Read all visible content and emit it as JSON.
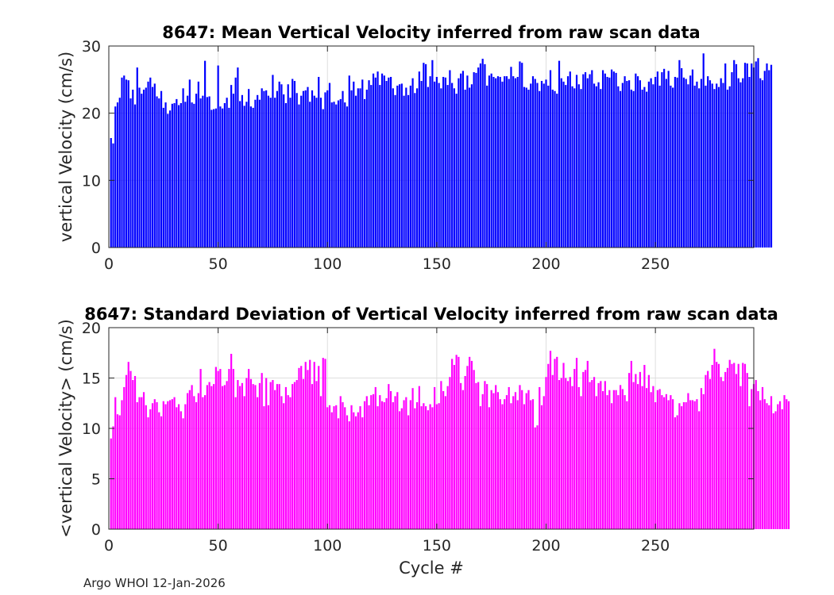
{
  "chart_data": [
    {
      "type": "bar",
      "title": "8647: Mean Vertical Velocity inferred from raw scan data",
      "xlabel": "",
      "ylabel": "vertical Velocity (cm/s)",
      "xlim": [
        0,
        295
      ],
      "ylim": [
        0,
        30
      ],
      "xticks": [
        0,
        50,
        100,
        150,
        200,
        250
      ],
      "yticks": [
        0,
        10,
        20,
        30
      ],
      "grid": true,
      "color": "#0000ff",
      "x_start": 1,
      "values": [
        16.3,
        15.5,
        21.0,
        21.6,
        22.3,
        25.3,
        25.6,
        25.0,
        24.9,
        22.2,
        23.5,
        21.3,
        26.8,
        23.8,
        22.9,
        23.5,
        23.8,
        24.7,
        25.3,
        23.9,
        24.4,
        22.5,
        22.2,
        23.3,
        20.8,
        21.6,
        19.9,
        20.4,
        21.4,
        21.5,
        22.1,
        21.2,
        21.5,
        23.7,
        21.7,
        22.6,
        25.0,
        21.6,
        21.4,
        22.9,
        24.7,
        22.2,
        22.6,
        27.8,
        22.4,
        22.5,
        20.5,
        20.6,
        20.7,
        27.1,
        21.0,
        20.7,
        21.5,
        22.3,
        20.8,
        24.2,
        22.9,
        25.3,
        26.8,
        21.8,
        22.7,
        21.1,
        21.7,
        23.6,
        21.0,
        20.8,
        22.0,
        22.7,
        22.0,
        23.7,
        23.3,
        23.4,
        22.6,
        22.3,
        25.7,
        22.3,
        23.3,
        24.7,
        24.3,
        22.8,
        21.5,
        24.3,
        22.3,
        25.1,
        24.8,
        23.0,
        21.3,
        22.6,
        23.3,
        23.4,
        23.9,
        21.7,
        23.4,
        22.6,
        22.3,
        25.4,
        22.3,
        20.6,
        23.1,
        23.4,
        24.5,
        21.6,
        21.7,
        21.3,
        21.9,
        22.1,
        23.3,
        21.6,
        21.0,
        25.6,
        23.4,
        24.7,
        22.6,
        23.7,
        23.7,
        25.0,
        22.1,
        23.5,
        24.9,
        24.2,
        25.9,
        25.3,
        26.2,
        24.2,
        25.9,
        25.6,
        24.8,
        25.3,
        25.4,
        23.7,
        22.7,
        24.1,
        24.3,
        24.4,
        22.6,
        23.8,
        22.7,
        24.1,
        25.2,
        23.0,
        23.7,
        26.2,
        24.8,
        27.5,
        27.3,
        23.9,
        25.5,
        27.9,
        24.7,
        25.4,
        24.5,
        23.7,
        25.4,
        25.3,
        24.2,
        26.4,
        24.5,
        23.7,
        22.9,
        25.2,
        25.9,
        26.3,
        23.5,
        25.6,
        23.8,
        24.3,
        26.1,
        26.0,
        26.8,
        27.4,
        28.1,
        27.3,
        24.1,
        25.6,
        25.9,
        25.4,
        25.2,
        25.5,
        25.4,
        24.7,
        25.5,
        25.5,
        25.1,
        26.9,
        25.5,
        25.2,
        25.4,
        27.7,
        27.5,
        23.9,
        23.8,
        23.5,
        24.4,
        25.5,
        25.1,
        24.5,
        23.3,
        24.8,
        24.4,
        25.0,
        24.1,
        26.4,
        23.5,
        23.3,
        22.9,
        27.8,
        25.2,
        24.7,
        24.2,
        25.5,
        26.2,
        24.0,
        23.7,
        25.7,
        24.3,
        23.6,
        25.8,
        26.1,
        25.2,
        25.8,
        26.4,
        24.4,
        24.0,
        24.6,
        23.6,
        26.4,
        25.9,
        25.4,
        25.3,
        26.5,
        26.2,
        26.0,
        24.0,
        23.3,
        24.5,
        25.5,
        24.8,
        24.9,
        23.5,
        23.3,
        25.9,
        25.5,
        24.9,
        23.5,
        23.9,
        23.2,
        24.7,
        25.2,
        24.3,
        25.4,
        26.2,
        24.1,
        26.1,
        26.6,
        25.1,
        26.3,
        24.1,
        23.8,
        25.4,
        25.3,
        27.9,
        26.7,
        25.3,
        25.1,
        24.3,
        25.6,
        26.5,
        24.1,
        24.7,
        23.7,
        25.1,
        28.9,
        24.1,
        25.5,
        24.9,
        24.4,
        23.6,
        24.4,
        23.9,
        25.2,
        24.5,
        27.4,
        23.5,
        24.0,
        26.1,
        27.9,
        27.3,
        25.2,
        24.6,
        25.2,
        27.5,
        27.4,
        25.4,
        27.4,
        26.8,
        27.7,
        28.2,
        25.2,
        24.9,
        26.3,
        27.4,
        26.4,
        27.2
      ]
    },
    {
      "type": "bar",
      "title": "8647: Standard Deviation of Vertical Velocity inferred from raw scan data",
      "xlabel": "Cycle #",
      "ylabel": "<vertical Velocity> (cm/s)",
      "xlim": [
        0,
        295
      ],
      "ylim": [
        0,
        20
      ],
      "xticks": [
        0,
        50,
        100,
        150,
        200,
        250
      ],
      "yticks": [
        0,
        5,
        10,
        15,
        20
      ],
      "grid": true,
      "color": "#ff00ff",
      "x_start": 1,
      "values": [
        9.0,
        10.2,
        13.1,
        11.4,
        11.3,
        12.8,
        14.1,
        15.3,
        16.6,
        15.7,
        14.8,
        15.2,
        12.6,
        13.1,
        13.1,
        13.6,
        12.3,
        11.1,
        11.9,
        12.5,
        12.9,
        12.6,
        11.6,
        11.2,
        12.7,
        12.4,
        12.7,
        12.8,
        12.9,
        13.1,
        12.1,
        12.4,
        11.7,
        11.0,
        12.4,
        13.5,
        13.8,
        14.3,
        13.2,
        12.6,
        13.5,
        15.9,
        13.1,
        13.3,
        14.3,
        14.6,
        14.2,
        14.4,
        16.1,
        15.7,
        15.9,
        14.2,
        14.3,
        14.7,
        15.9,
        17.4,
        15.9,
        13.1,
        14.8,
        14.2,
        14.5,
        13.2,
        15.0,
        15.9,
        14.9,
        14.4,
        14.3,
        13.1,
        14.5,
        15.5,
        12.2,
        15.0,
        12.3,
        14.6,
        14.8,
        13.8,
        14.4,
        14.4,
        13.2,
        12.5,
        14.1,
        13.3,
        13.1,
        14.4,
        14.6,
        14.8,
        16.0,
        16.2,
        14.9,
        16.6,
        15.8,
        16.8,
        14.4,
        16.6,
        14.7,
        16.2,
        13.2,
        17.0,
        16.9,
        12.1,
        12.3,
        11.6,
        12.2,
        12.3,
        11.0,
        13.2,
        12.6,
        12.1,
        11.3,
        10.7,
        12.3,
        11.6,
        11.2,
        11.6,
        12.2,
        11.1,
        12.7,
        13.2,
        12.3,
        13.3,
        13.4,
        14.1,
        12.2,
        13.3,
        12.7,
        12.6,
        13.0,
        14.4,
        13.7,
        12.6,
        13.2,
        13.6,
        11.7,
        12.0,
        12.8,
        13.1,
        11.3,
        12.8,
        14.0,
        12.0,
        12.6,
        14.2,
        12.2,
        12.5,
        12.2,
        11.8,
        12.4,
        12.1,
        14.1,
        12.4,
        12.5,
        14.7,
        13.7,
        13.2,
        14.2,
        15.1,
        16.9,
        16.3,
        17.3,
        17.1,
        14.5,
        13.8,
        15.2,
        16.2,
        17.1,
        16.7,
        15.8,
        14.5,
        14.6,
        12.2,
        13.4,
        14.7,
        14.4,
        12.1,
        13.8,
        13.5,
        14.3,
        13.6,
        12.9,
        12.4,
        12.9,
        13.3,
        14.1,
        12.5,
        13.2,
        13.6,
        12.8,
        14.3,
        13.8,
        12.4,
        13.5,
        13.8,
        12.8,
        12.9,
        10.1,
        10.3,
        14.1,
        12.3,
        13.2,
        15.1,
        16.4,
        17.7,
        15.3,
        16.9,
        17.1,
        14.8,
        15.0,
        16.5,
        15.0,
        14.7,
        15.1,
        14.2,
        15.9,
        17.0,
        14.1,
        13.2,
        15.6,
        15.8,
        16.7,
        14.6,
        14.8,
        15.1,
        13.2,
        14.5,
        14.7,
        13.7,
        14.7,
        13.3,
        13.8,
        12.5,
        13.8,
        13.8,
        13.3,
        14.3,
        13.9,
        13.3,
        12.7,
        15.5,
        16.7,
        14.6,
        15.4,
        14.4,
        15.6,
        14.2,
        16.3,
        14.0,
        15.3,
        13.6,
        14.2,
        12.6,
        13.8,
        13.9,
        13.3,
        13.1,
        13.4,
        12.8,
        13.3,
        12.9,
        11.1,
        11.3,
        12.5,
        12.2,
        12.6,
        12.6,
        13.5,
        12.8,
        12.8,
        12.7,
        12.9,
        11.7,
        14.0,
        13.4,
        15.3,
        15.7,
        14.9,
        16.3,
        17.9,
        16.6,
        16.4,
        15.1,
        14.7,
        15.6,
        16.0,
        16.8,
        16.4,
        16.5,
        15.4,
        16.4,
        14.2,
        16.5,
        16.4,
        15.5,
        12.2,
        13.9,
        14.4,
        14.8,
        13.7,
        12.8,
        14.1,
        12.9,
        12.5,
        12.3,
        13.2,
        11.5,
        11.7,
        12.4,
        12.7,
        11.9,
        13.3,
        12.9,
        12.7
      ]
    }
  ],
  "footer": {
    "text": "Argo WHOI 12-Jan-2026"
  }
}
